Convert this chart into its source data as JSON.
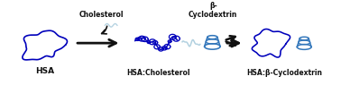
{
  "background_color": "#ffffff",
  "protein_color": "#0000bb",
  "cyclodextrin_color": "#3377bb",
  "cholesterol_color": "#aaccdd",
  "arrow_color": "#111111",
  "label_hsa": "HSA",
  "label_hsa_chol": "HSA:Cholesterol",
  "label_hsa_beta": "HSA:β-Cyclodextrin",
  "label_cholesterol": "Cholesterol",
  "label_beta": "β-\nCyclodextrin",
  "text_color": "#111111",
  "fig_width": 3.78,
  "fig_height": 0.95,
  "dpi": 100
}
